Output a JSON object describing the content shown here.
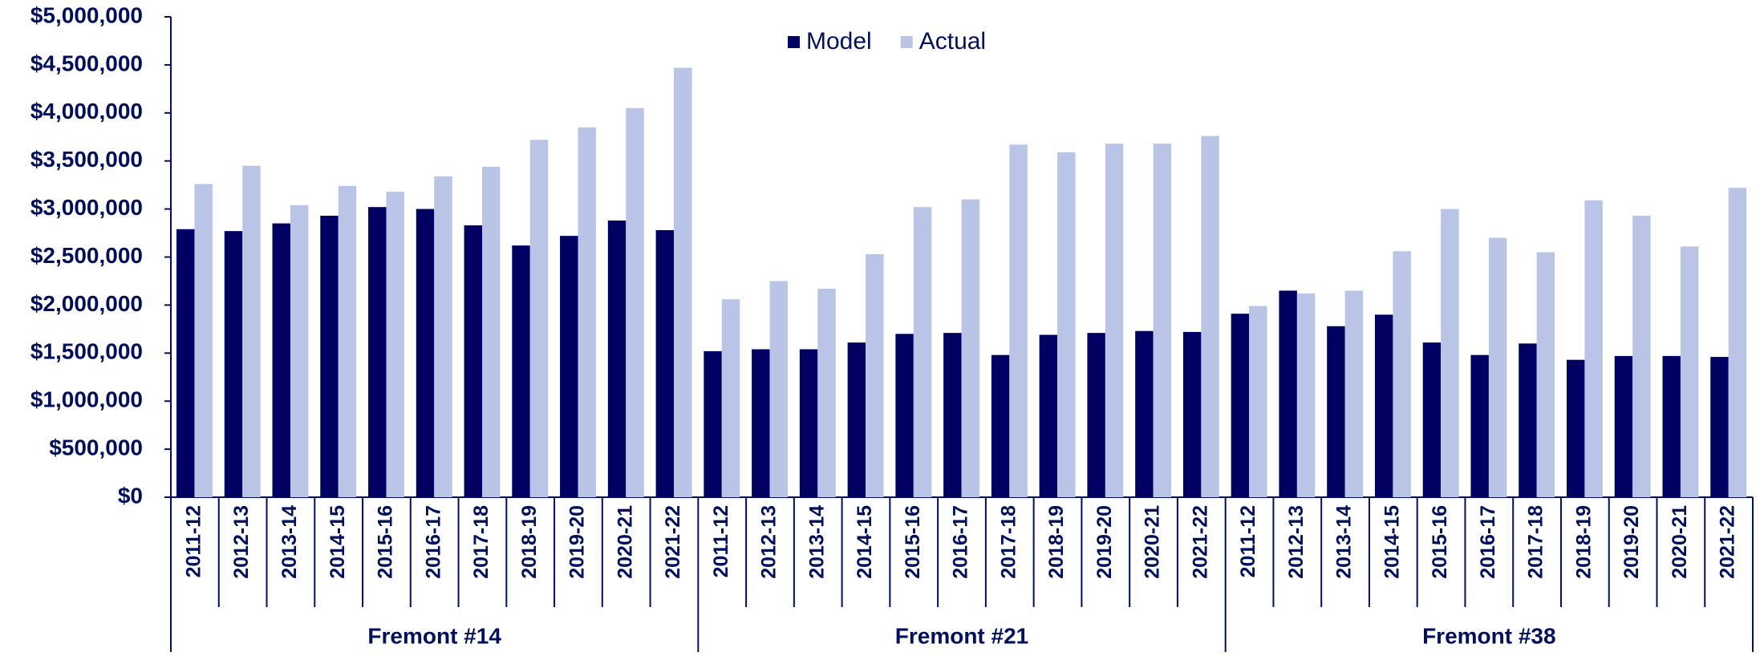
{
  "chart_data": {
    "type": "bar",
    "groups": [
      {
        "label": "Fremont #14",
        "categories": [
          "2011-12",
          "2012-13",
          "2013-14",
          "2014-15",
          "2015-16",
          "2016-17",
          "2017-18",
          "2018-19",
          "2019-20",
          "2020-21",
          "2021-22"
        ]
      },
      {
        "label": "Fremont #21",
        "categories": [
          "2011-12",
          "2012-13",
          "2013-14",
          "2014-15",
          "2015-16",
          "2016-17",
          "2017-18",
          "2018-19",
          "2019-20",
          "2020-21",
          "2021-22"
        ]
      },
      {
        "label": "Fremont #38",
        "categories": [
          "2011-12",
          "2012-13",
          "2013-14",
          "2014-15",
          "2015-16",
          "2016-17",
          "2017-18",
          "2018-19",
          "2019-20",
          "2020-21",
          "2021-22"
        ]
      }
    ],
    "series": [
      {
        "name": "Model",
        "color": "#000062",
        "values": [
          2790000,
          2770000,
          2850000,
          2930000,
          3020000,
          3000000,
          2830000,
          2620000,
          2720000,
          2880000,
          2780000,
          1520000,
          1540000,
          1540000,
          1610000,
          1700000,
          1710000,
          1480000,
          1690000,
          1710000,
          1730000,
          1720000,
          1910000,
          2150000,
          1780000,
          1900000,
          1610000,
          1480000,
          1600000,
          1430000,
          1470000,
          1470000,
          1460000
        ]
      },
      {
        "name": "Actual",
        "color": "#b9c4e6",
        "values": [
          3260000,
          3450000,
          3040000,
          3240000,
          3180000,
          3340000,
          3440000,
          3720000,
          3850000,
          4050000,
          4470000,
          2060000,
          2250000,
          2170000,
          2530000,
          3020000,
          3100000,
          3670000,
          3590000,
          3680000,
          3680000,
          3760000,
          1990000,
          2120000,
          2150000,
          2560000,
          3000000,
          2700000,
          2550000,
          3090000,
          2930000,
          2610000,
          3220000
        ]
      }
    ],
    "ylim": [
      0,
      5000000
    ],
    "yticks": [
      {
        "value": 0,
        "label": "$0"
      },
      {
        "value": 500000,
        "label": "$500,000"
      },
      {
        "value": 1000000,
        "label": "$1,000,000"
      },
      {
        "value": 1500000,
        "label": "$1,500,000"
      },
      {
        "value": 2000000,
        "label": "$2,000,000"
      },
      {
        "value": 2500000,
        "label": "$2,500,000"
      },
      {
        "value": 3000000,
        "label": "$3,000,000"
      },
      {
        "value": 3500000,
        "label": "$3,500,000"
      },
      {
        "value": 4000000,
        "label": "$4,000,000"
      },
      {
        "value": 4500000,
        "label": "$4,500,000"
      },
      {
        "value": 5000000,
        "label": "$5,000,000"
      }
    ],
    "legend": "top"
  }
}
